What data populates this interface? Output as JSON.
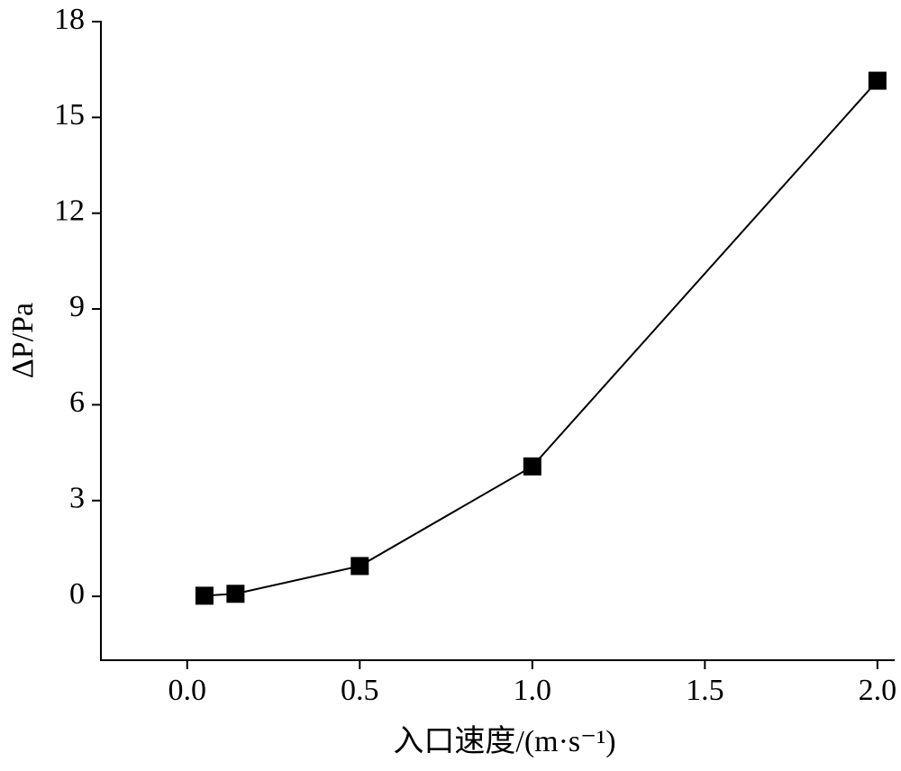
{
  "chart_data": {
    "type": "line",
    "x_label": "入口速度/(m·s⁻¹)",
    "y_label": "ΔP/Pa",
    "x": [
      0.05,
      0.14,
      0.5,
      1.0,
      2.0
    ],
    "series": [
      {
        "color": "#000000",
        "values": [
          0.02,
          0.08,
          0.95,
          4.07,
          16.15
        ]
      }
    ],
    "xlim": [
      -0.25,
      2.05
    ],
    "ylim": [
      -2,
      18
    ],
    "xticks": [
      {
        "value": 0,
        "label": "0.0"
      },
      0.5,
      {
        "value": 1,
        "label": "1.0"
      },
      1.5,
      {
        "value": 2,
        "label": "2.0"
      }
    ],
    "yticks": [
      0,
      3,
      6,
      9,
      12,
      15,
      18
    ],
    "marker": "square"
  }
}
